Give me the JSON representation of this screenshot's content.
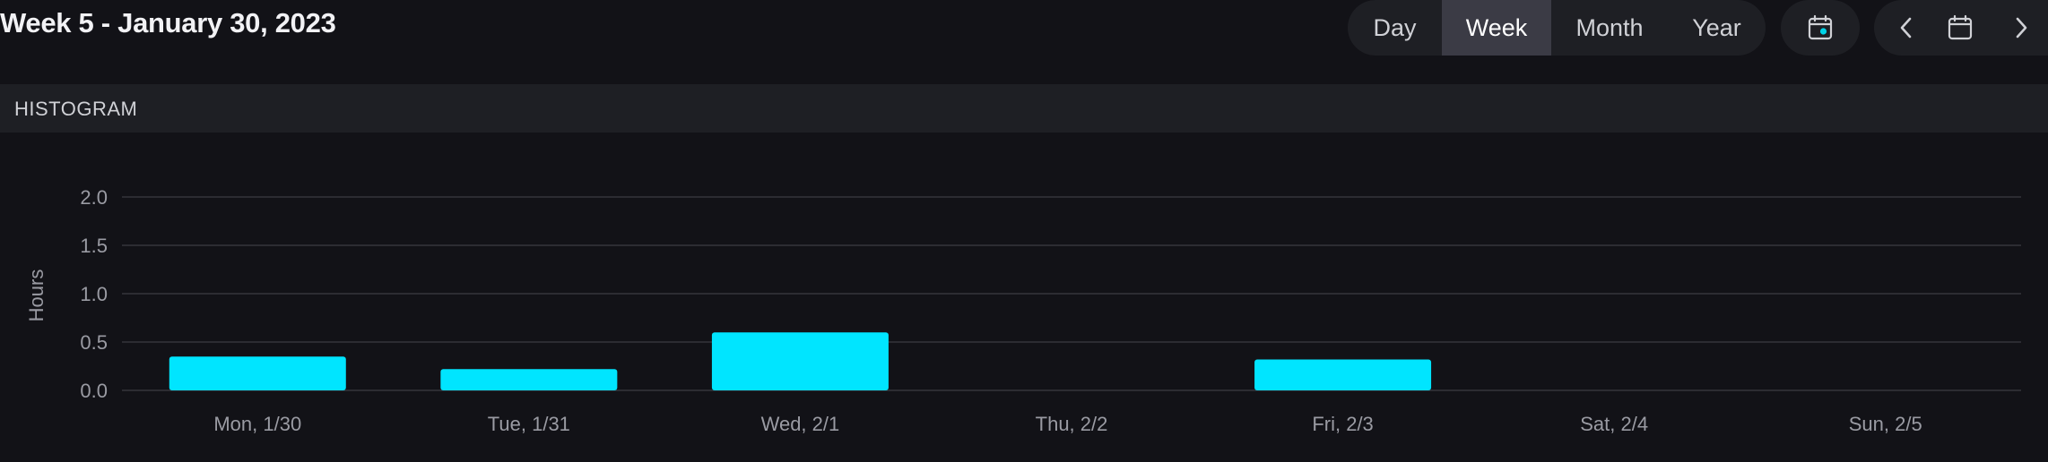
{
  "header": {
    "title": "Week 5 - January 30, 2023",
    "period_tabs": [
      {
        "label": "Day",
        "active": false
      },
      {
        "label": "Week",
        "active": true
      },
      {
        "label": "Month",
        "active": false
      },
      {
        "label": "Year",
        "active": false
      }
    ],
    "icons": {
      "today": "calendar-today-icon",
      "prev": "chevron-left-icon",
      "calendar": "calendar-icon",
      "next": "chevron-right-icon"
    }
  },
  "section": {
    "title": "HISTOGRAM"
  },
  "colors": {
    "bar": "#00e5ff",
    "accent": "#00d4e8",
    "grid": "#34353c",
    "background": "#121217"
  },
  "chart_data": {
    "type": "bar",
    "title": "",
    "xlabel": "",
    "ylabel": "Hours",
    "categories": [
      "Mon, 1/30",
      "Tue, 1/31",
      "Wed, 2/1",
      "Thu, 2/2",
      "Fri, 2/3",
      "Sat, 2/4",
      "Sun, 2/5"
    ],
    "values": [
      0.35,
      0.22,
      0.6,
      0,
      0.32,
      0,
      0
    ],
    "ylim": [
      0,
      2.0
    ],
    "yticks": [
      "0.0",
      "0.5",
      "1.0",
      "1.5",
      "2.0"
    ],
    "grid": true,
    "legend": "none"
  }
}
